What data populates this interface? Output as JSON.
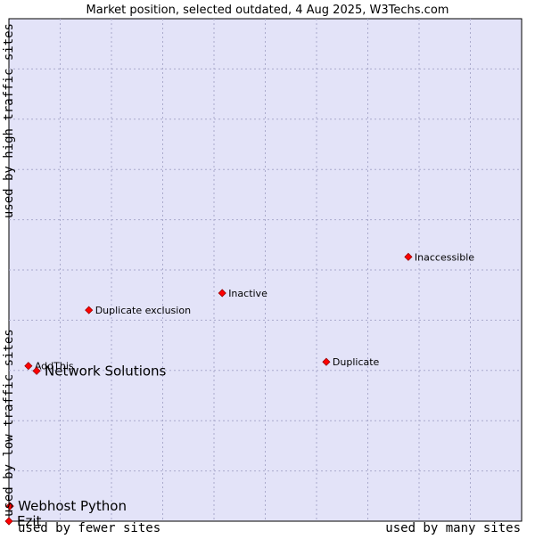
{
  "chart_data": {
    "type": "scatter",
    "title": "Market position, selected outdated, 4 Aug 2025, W3Techs.com",
    "x_label_low": "used by fewer sites",
    "x_label_high": "used by many sites",
    "y_label_low": "used by low traffic sites",
    "y_label_high": "used by high traffic sites",
    "xlim": [
      0,
      100
    ],
    "ylim": [
      0,
      100
    ],
    "grid": true,
    "points": [
      {
        "label": "Inaccessible",
        "x": 77.9,
        "y": 52.6,
        "highlight": false
      },
      {
        "label": "Inactive",
        "x": 41.6,
        "y": 45.4,
        "highlight": false
      },
      {
        "label": "Duplicate exclusion",
        "x": 15.6,
        "y": 42.0,
        "highlight": false
      },
      {
        "label": "Duplicate",
        "x": 61.9,
        "y": 31.7,
        "highlight": false
      },
      {
        "label": "AddThis",
        "x": 3.8,
        "y": 30.9,
        "highlight": false
      },
      {
        "label": "Network Solutions",
        "x": 5.4,
        "y": 29.9,
        "highlight": true
      },
      {
        "label": "Webhost Python",
        "x": 0.2,
        "y": 3.0,
        "highlight": true
      },
      {
        "label": "Ezit",
        "x": 0.0,
        "y": 0.0,
        "highlight": true
      }
    ]
  },
  "colors": {
    "plot_bg": "#e3e3f8",
    "grid": "#aaaacc",
    "marker": "#ff0000",
    "text": "#000000"
  }
}
